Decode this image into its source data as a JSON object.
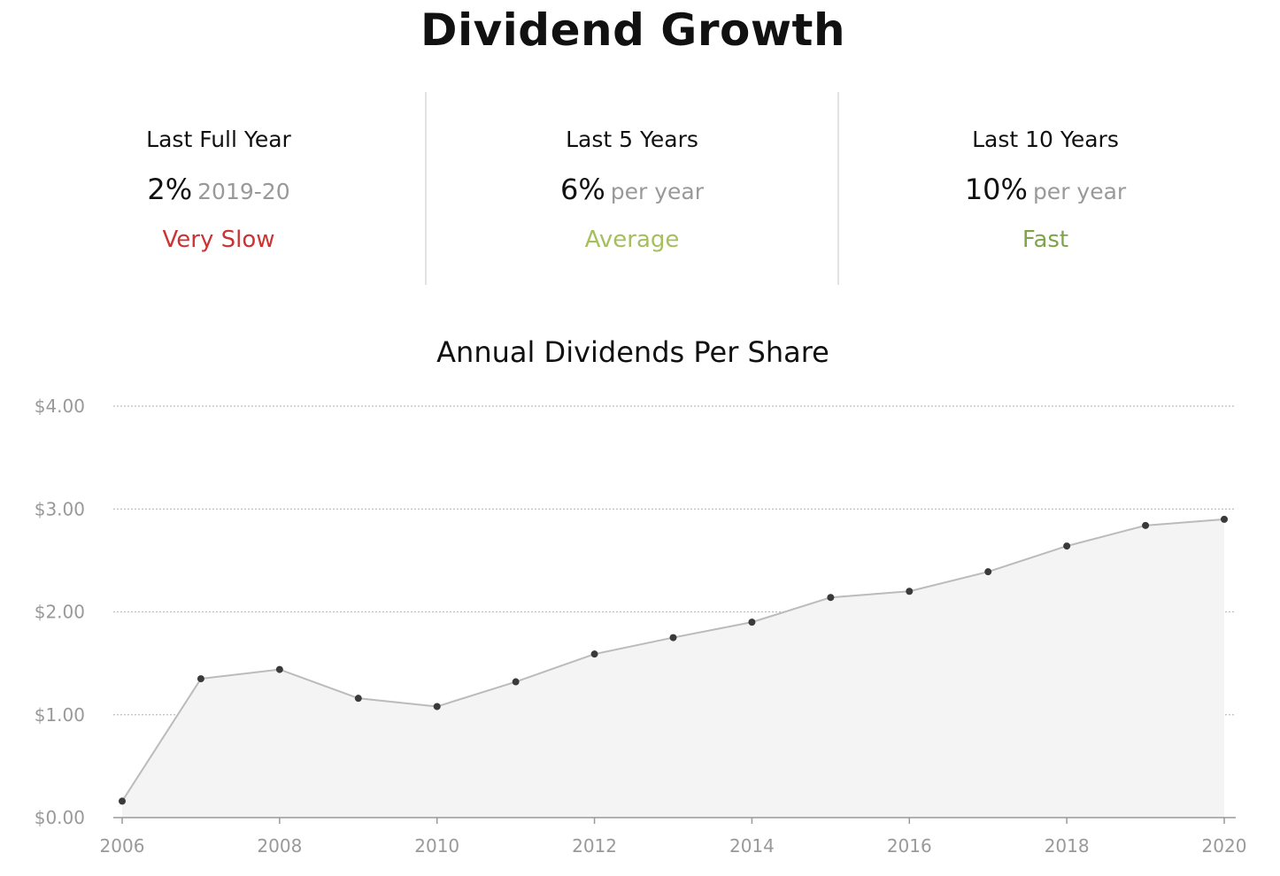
{
  "header": {
    "title": "Dividend Growth"
  },
  "stats": [
    {
      "label": "Last Full Year",
      "value": "2%",
      "sub": "2019-20",
      "rating": "Very Slow",
      "rating_color": "#cc3333"
    },
    {
      "label": "Last 5 Years",
      "value": "6%",
      "sub": "per year",
      "rating": "Average",
      "rating_color": "#a5bf5e"
    },
    {
      "label": "Last 10 Years",
      "value": "10%",
      "sub": "per year",
      "rating": "Fast",
      "rating_color": "#7ea54a"
    }
  ],
  "chart_data": {
    "type": "area",
    "title": "Annual Dividends Per Share",
    "xlabel": "",
    "ylabel": "",
    "x": [
      2006,
      2007,
      2008,
      2009,
      2010,
      2011,
      2012,
      2013,
      2014,
      2015,
      2016,
      2017,
      2018,
      2019,
      2020
    ],
    "values": [
      0.16,
      1.35,
      1.44,
      1.16,
      1.08,
      1.32,
      1.59,
      1.75,
      1.9,
      2.14,
      2.2,
      2.39,
      2.64,
      2.84,
      2.9
    ],
    "xlim": [
      2006,
      2020
    ],
    "ylim": [
      0,
      4
    ],
    "x_ticks": [
      "2006",
      "2008",
      "2010",
      "2012",
      "2014",
      "2016",
      "2018",
      "2020"
    ],
    "y_ticks": [
      "$0.00",
      "$1.00",
      "$2.00",
      "$3.00",
      "$4.00"
    ],
    "grid": true,
    "line_color": "#bbbbbb",
    "fill_color": "#f4f4f4",
    "point_color": "#3a3a3a"
  }
}
